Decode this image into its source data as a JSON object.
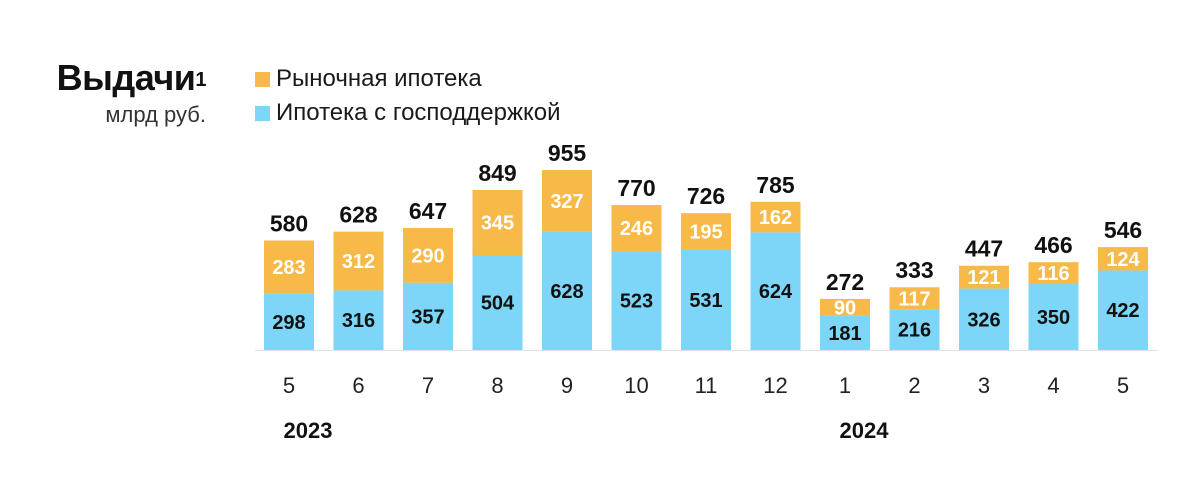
{
  "title": "Выдачи",
  "title_footnote": "1",
  "subtitle": "млрд руб.",
  "legend": [
    {
      "label": "Рыночная ипотека",
      "color": "#F7B948"
    },
    {
      "label": "Ипотека с господдержкой",
      "color": "#7DD6F7"
    }
  ],
  "chart_data": {
    "type": "bar",
    "stacked": true,
    "categories": [
      "5",
      "6",
      "7",
      "8",
      "9",
      "10",
      "11",
      "12",
      "1",
      "2",
      "3",
      "4",
      "5"
    ],
    "year_labels": [
      {
        "label": "2023",
        "category_index": 0
      },
      {
        "label": "2024",
        "category_index": 8
      }
    ],
    "series": [
      {
        "name": "Ипотека с господдержкой",
        "color": "#7DD6F7",
        "label_color": "#111111",
        "values": [
          298,
          316,
          357,
          504,
          628,
          523,
          531,
          624,
          181,
          216,
          326,
          350,
          422
        ]
      },
      {
        "name": "Рыночная ипотека",
        "color": "#F7B948",
        "label_color": "#ffffff",
        "values": [
          283,
          312,
          290,
          345,
          327,
          246,
          195,
          162,
          90,
          117,
          121,
          116,
          124
        ]
      }
    ],
    "totals": [
      580,
      628,
      647,
      849,
      955,
      770,
      726,
      785,
      272,
      333,
      447,
      466,
      546
    ],
    "title": "Выдачи",
    "ylabel": "млрд руб.",
    "ylim": [
      0,
      955
    ]
  }
}
